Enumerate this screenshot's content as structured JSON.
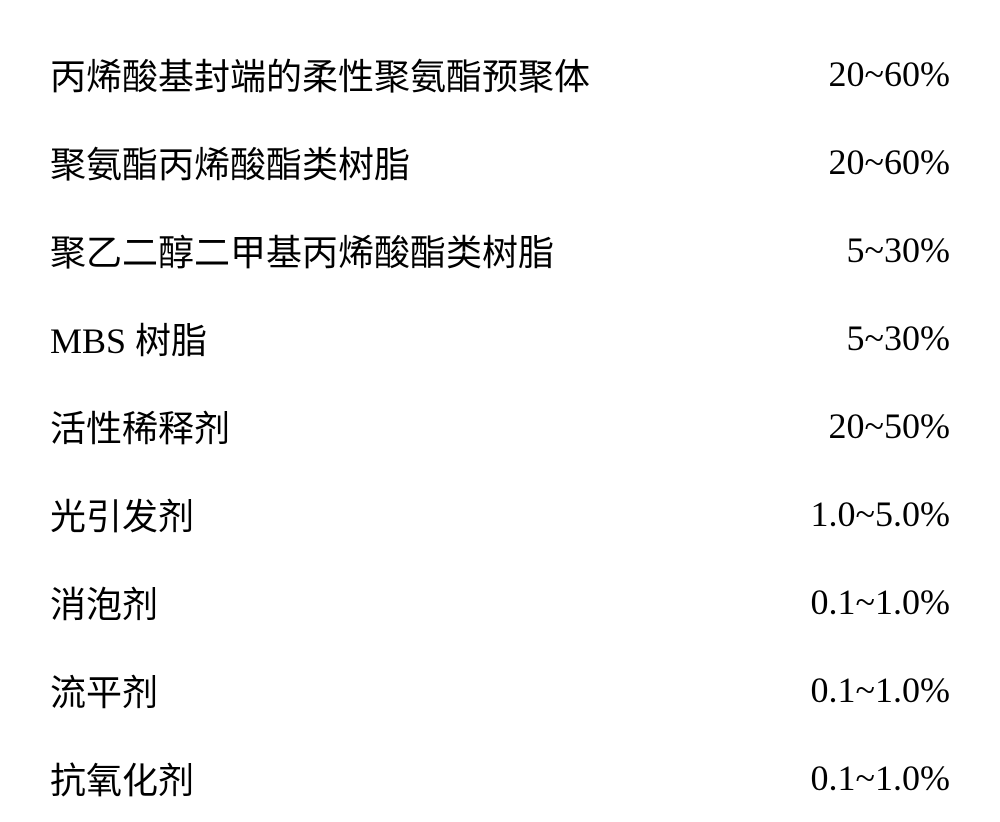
{
  "composition": {
    "rows": [
      {
        "label": "丙烯酸基封端的柔性聚氨酯预聚体",
        "value": "20~60%"
      },
      {
        "label": "聚氨酯丙烯酸酯类树脂",
        "value": "20~60%"
      },
      {
        "label": "聚乙二醇二甲基丙烯酸酯类树脂",
        "value": "5~30%"
      },
      {
        "label": "MBS 树脂",
        "value": "5~30%"
      },
      {
        "label": "活性稀释剂",
        "value": "20~50%"
      },
      {
        "label": "光引发剂",
        "value": "1.0~5.0%"
      },
      {
        "label": "消泡剂",
        "value": "0.1~1.0%"
      },
      {
        "label": "流平剂",
        "value": "0.1~1.0%"
      },
      {
        "label": "抗氧化剂",
        "value": "0.1~1.0%"
      }
    ],
    "label_fontsize": 36,
    "value_fontsize": 36,
    "text_color": "#000000",
    "background_color": "#ffffff"
  }
}
